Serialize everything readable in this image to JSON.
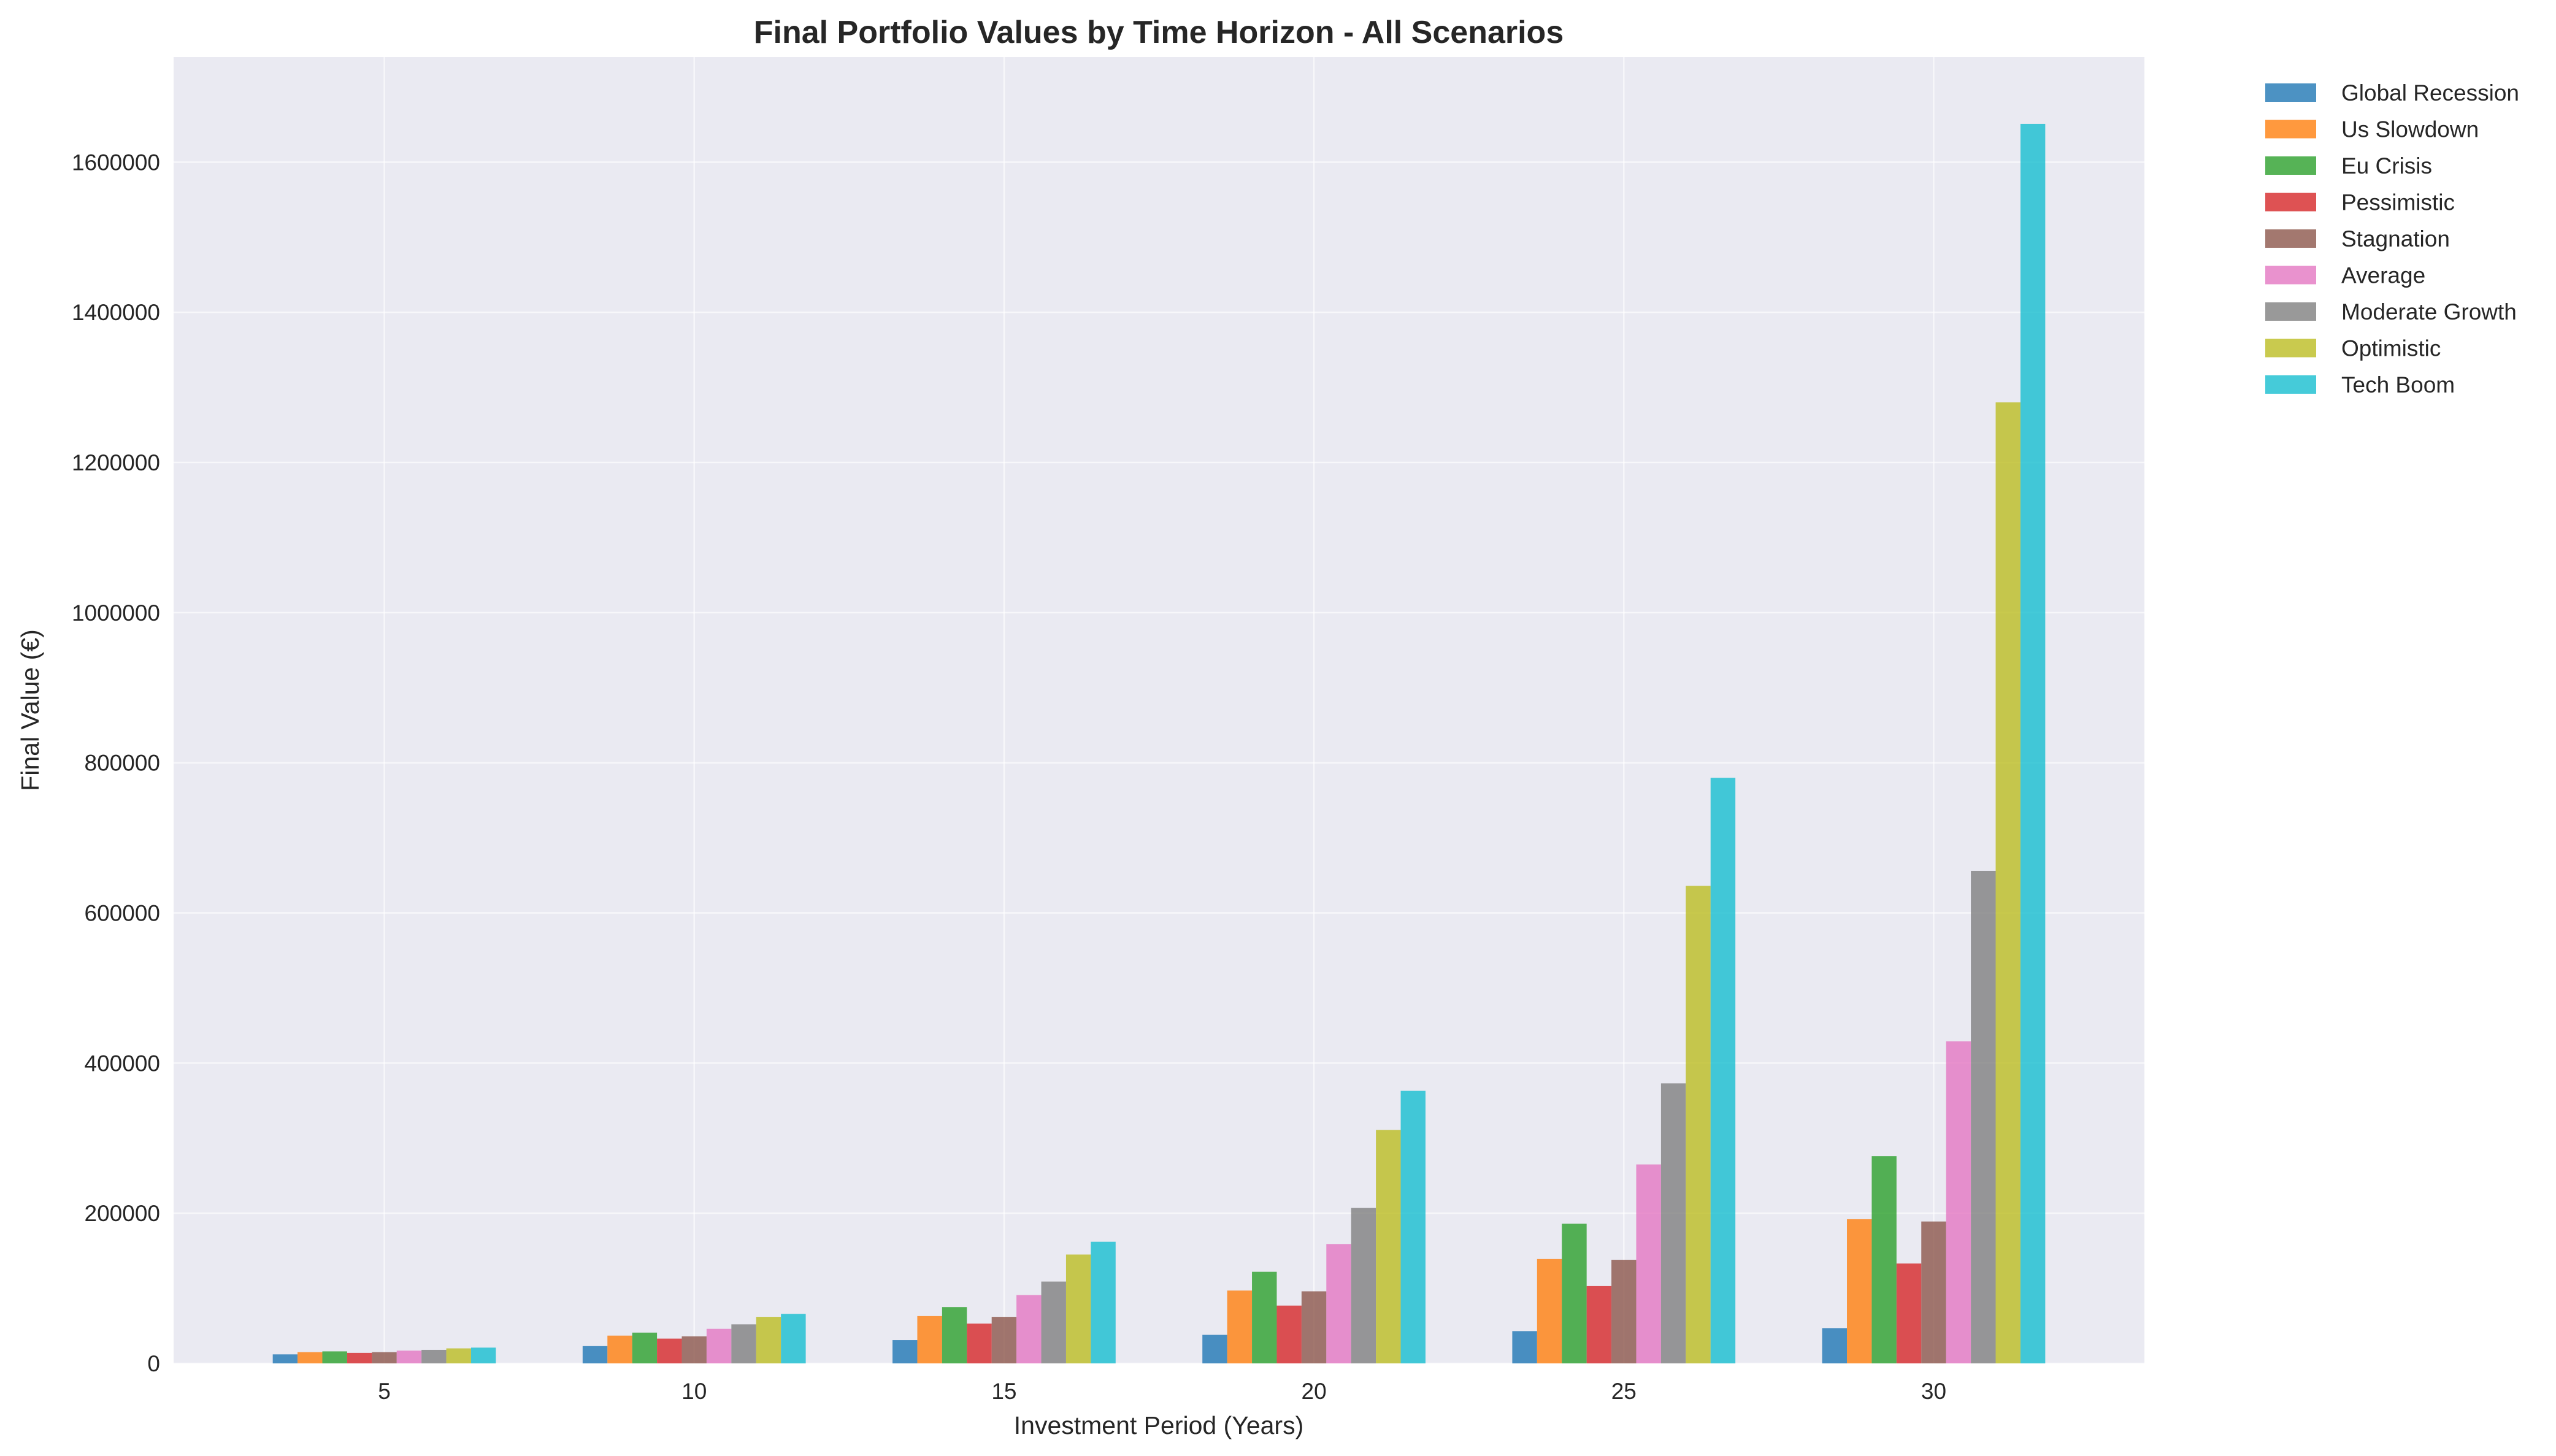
{
  "chart_data": {
    "type": "bar",
    "title": "Final Portfolio Values by Time Horizon - All Scenarios",
    "xlabel": "Investment Period (Years)",
    "ylabel": "Final Value (€)",
    "categories": [
      "5",
      "10",
      "15",
      "20",
      "25",
      "30"
    ],
    "ylim": [
      0,
      1740000
    ],
    "yticks": [
      0,
      200000,
      400000,
      600000,
      800000,
      1000000,
      1200000,
      1400000,
      1600000
    ],
    "ytick_labels": [
      "0",
      "200000",
      "400000",
      "600000",
      "800000",
      "1000000",
      "1200000",
      "1400000",
      "1600000"
    ],
    "grid": true,
    "legend_position": "outside-right-top",
    "series": [
      {
        "name": "Global Recession",
        "color": "#1f77b4",
        "values": [
          12000,
          23000,
          31000,
          38000,
          43000,
          47000
        ]
      },
      {
        "name": "Us Slowdown",
        "color": "#ff7f0e",
        "values": [
          15000,
          37000,
          63000,
          97000,
          139000,
          192000
        ]
      },
      {
        "name": "Eu Crisis",
        "color": "#2ca02c",
        "values": [
          16000,
          41000,
          75000,
          122000,
          186000,
          276000
        ]
      },
      {
        "name": "Pessimistic",
        "color": "#d62728",
        "values": [
          14000,
          33000,
          53000,
          77000,
          103000,
          133000
        ]
      },
      {
        "name": "Stagnation",
        "color": "#8c564b",
        "values": [
          15000,
          36000,
          62000,
          96000,
          138000,
          189000
        ]
      },
      {
        "name": "Average",
        "color": "#e377c2",
        "values": [
          17000,
          46000,
          91000,
          159000,
          265000,
          429000
        ]
      },
      {
        "name": "Moderate Growth",
        "color": "#7f7f7f",
        "values": [
          18000,
          52000,
          109000,
          207000,
          373000,
          656000
        ]
      },
      {
        "name": "Optimistic",
        "color": "#bcbd22",
        "values": [
          20000,
          62000,
          145000,
          311000,
          636000,
          1280000
        ]
      },
      {
        "name": "Tech Boom",
        "color": "#17becf",
        "values": [
          21000,
          66000,
          162000,
          363000,
          780000,
          1651000
        ]
      }
    ]
  }
}
